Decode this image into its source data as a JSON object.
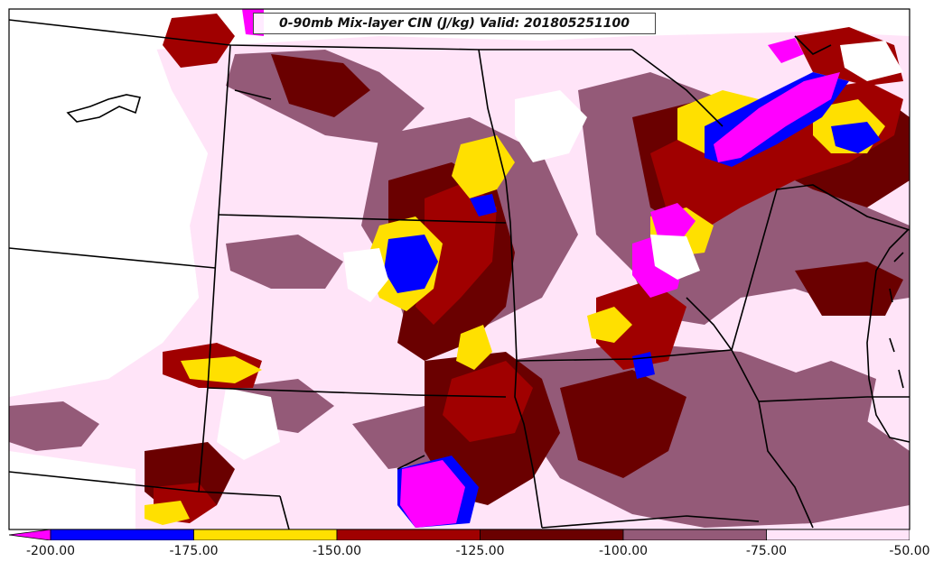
{
  "title": "0-90mb Mix-layer CIN (J/kg) Valid: 201805251100",
  "colorbar": {
    "bins": [
      {
        "from": -200,
        "to": -175,
        "color": "#0000ff"
      },
      {
        "from": -175,
        "to": -150,
        "color": "#ffe000"
      },
      {
        "from": -150,
        "to": -125,
        "color": "#a00000"
      },
      {
        "from": -125,
        "to": -100,
        "color": "#6a0000"
      },
      {
        "from": -100,
        "to": -75,
        "color": "#945a78"
      },
      {
        "from": -75,
        "to": -50,
        "color": "#ffe4f8"
      }
    ],
    "under_color": "#ff00ff",
    "tick_labels": [
      "-200.00",
      "-175.00",
      "-150.00",
      "-125.00",
      "-100.00",
      "-75.00",
      "-50.00"
    ]
  },
  "legend_colors": {
    "magenta": "#ff00ff",
    "blue": "#0000ff",
    "yellow": "#ffe000",
    "red": "#a00000",
    "dark_red": "#6a0000",
    "mauve": "#945a78",
    "light_pink": "#ffe4f8",
    "background": "#ffffff"
  }
}
